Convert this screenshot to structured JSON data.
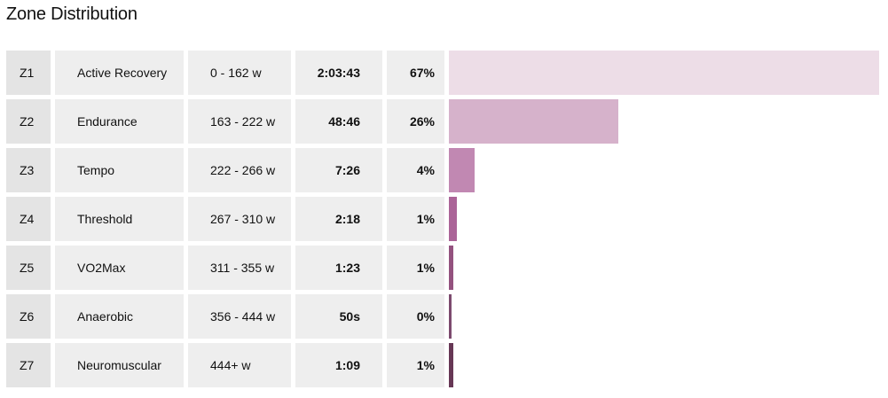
{
  "title": "Zone Distribution",
  "colors": {
    "Z1": "#eddde7",
    "Z2": "#d6b2cb",
    "Z3": "#c188b2",
    "Z4": "#ab6498",
    "Z5": "#94527f",
    "Z6": "#7c4a6e",
    "Z7": "#673755"
  },
  "chart_data": {
    "type": "bar",
    "orientation": "horizontal",
    "title": "Zone Distribution",
    "categories": [
      "Z1",
      "Z2",
      "Z3",
      "Z4",
      "Z5",
      "Z6",
      "Z7"
    ],
    "rows": [
      {
        "zone": "Z1",
        "name": "Active Recovery",
        "range": "0 - 162 w",
        "time": "2:03:43",
        "percent_label": "67%",
        "seconds": 7423
      },
      {
        "zone": "Z2",
        "name": "Endurance",
        "range": "163 - 222 w",
        "time": "48:46",
        "percent_label": "26%",
        "seconds": 2926
      },
      {
        "zone": "Z3",
        "name": "Tempo",
        "range": "222 - 266 w",
        "time": "7:26",
        "percent_label": "4%",
        "seconds": 446
      },
      {
        "zone": "Z4",
        "name": "Threshold",
        "range": "267 - 310 w",
        "time": "2:18",
        "percent_label": "1%",
        "seconds": 138
      },
      {
        "zone": "Z5",
        "name": "VO2Max",
        "range": "311 - 355 w",
        "time": "1:23",
        "percent_label": "1%",
        "seconds": 83
      },
      {
        "zone": "Z6",
        "name": "Anaerobic",
        "range": "356 - 444 w",
        "time": "50s",
        "percent_label": "0%",
        "seconds": 50
      },
      {
        "zone": "Z7",
        "name": "Neuromuscular",
        "range": "444+ w",
        "time": "1:09",
        "percent_label": "1%",
        "seconds": 69
      }
    ]
  }
}
